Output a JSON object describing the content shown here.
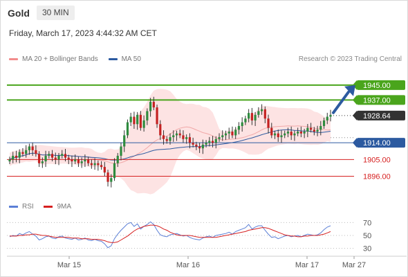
{
  "header": {
    "instrument": "Gold",
    "interval": "30 MIN"
  },
  "datetime": "Friday, March 17, 2023 4:44:32 AM CET",
  "legend": [
    {
      "label": "MA 20 + Bollinger Bands",
      "color": "#f28b8b"
    },
    {
      "label": "MA 50",
      "color": "#2c5aa0"
    }
  ],
  "copyright": "Research © 2023 Trading Central",
  "rsi_legend": [
    {
      "label": "RSI",
      "color": "#5b7fd6"
    },
    {
      "label": "9MA",
      "color": "#d62020"
    }
  ],
  "chart_data": [
    {
      "type": "candlestick",
      "title": "Gold",
      "ylim": [
        1888,
        1955
      ],
      "x_labels": [
        "Mar 15",
        "Mar 16",
        "Mar 17",
        "Mar 27"
      ],
      "last_price": {
        "value": 1928.64,
        "label": "1928.64",
        "color": "#333333"
      },
      "levels": [
        {
          "value": 1945.0,
          "label": "1945.00",
          "color": "#4aa51c",
          "kind": "resistance"
        },
        {
          "value": 1937.0,
          "label": "1937.00",
          "color": "#4aa51c",
          "kind": "resistance"
        },
        {
          "value": 1914.0,
          "label": "1914.00",
          "color": "#2c5aa0",
          "kind": "pivot"
        },
        {
          "value": 1905.0,
          "label": "1905.00",
          "color": "#d62020",
          "kind": "support"
        },
        {
          "value": 1896.0,
          "label": "1896.00",
          "color": "#d62020",
          "kind": "support"
        }
      ],
      "arrow": {
        "from": 1928.64,
        "to": 1945.0,
        "color": "#2c5aa0"
      },
      "candles": [
        1905,
        1907,
        1906,
        1909,
        1908,
        1910,
        1912,
        1910,
        1908,
        1903,
        1904,
        1907,
        1908,
        1906,
        1905,
        1907,
        1908,
        1906,
        1905,
        1904,
        1905,
        1903,
        1904,
        1905,
        1903,
        1902,
        1903,
        1902,
        1901,
        1898,
        1893,
        1895,
        1903,
        1907,
        1912,
        1918,
        1925,
        1928,
        1924,
        1929,
        1922,
        1926,
        1931,
        1936,
        1933,
        1924,
        1918,
        1916,
        1915,
        1917,
        1918,
        1919,
        1918,
        1916,
        1917,
        1914,
        1913,
        1912,
        1911,
        1913,
        1914,
        1915,
        1914,
        1916,
        1917,
        1918,
        1919,
        1920,
        1918,
        1921,
        1923,
        1925,
        1927,
        1930,
        1926,
        1929,
        1931,
        1932,
        1927,
        1922,
        1918,
        1919,
        1917,
        1918,
        1919,
        1920,
        1918,
        1919,
        1920,
        1919,
        1920,
        1922,
        1921,
        1920,
        1921,
        1923,
        1926,
        1928,
        1929
      ]
    },
    {
      "type": "line",
      "title": "RSI",
      "ylim": [
        20,
        80
      ],
      "y_ticks": [
        70,
        50,
        30
      ],
      "series": [
        {
          "name": "RSI",
          "color": "#5b7fd6",
          "values": [
            48,
            50,
            49,
            53,
            51,
            54,
            56,
            52,
            49,
            43,
            45,
            48,
            49,
            46,
            45,
            48,
            49,
            46,
            45,
            44,
            46,
            43,
            44,
            46,
            43,
            42,
            44,
            42,
            41,
            37,
            31,
            34,
            45,
            52,
            58,
            63,
            68,
            70,
            64,
            68,
            60,
            64,
            67,
            71,
            67,
            58,
            51,
            49,
            48,
            51,
            52,
            53,
            51,
            49,
            50,
            47,
            45,
            44,
            43,
            46,
            48,
            49,
            47,
            50,
            51,
            52,
            53,
            55,
            52,
            56,
            58,
            60,
            62,
            67,
            60,
            63,
            65,
            65,
            58,
            52,
            47,
            48,
            45,
            47,
            49,
            50,
            48,
            49,
            50,
            48,
            50,
            52,
            51,
            50,
            51,
            54,
            59,
            63,
            65
          ]
        },
        {
          "name": "9MA",
          "color": "#d62020",
          "values": [
            49,
            49,
            49,
            50,
            50,
            51,
            51,
            52,
            52,
            51,
            50,
            50,
            49,
            48,
            47,
            47,
            47,
            47,
            47,
            46,
            46,
            46,
            45,
            45,
            45,
            44,
            44,
            44,
            43,
            42,
            40,
            39,
            39,
            40,
            43,
            46,
            49,
            53,
            57,
            60,
            62,
            64,
            65,
            66,
            66,
            65,
            63,
            60,
            58,
            55,
            53,
            51,
            50,
            50,
            50,
            50,
            49,
            48,
            47,
            47,
            47,
            47,
            47,
            47,
            48,
            49,
            50,
            51,
            52,
            53,
            54,
            55,
            56,
            58,
            59,
            60,
            61,
            62,
            62,
            61,
            59,
            57,
            55,
            53,
            51,
            50,
            49,
            49,
            48,
            48,
            49,
            49,
            50,
            50,
            50,
            51,
            52,
            54,
            56
          ]
        }
      ]
    }
  ]
}
